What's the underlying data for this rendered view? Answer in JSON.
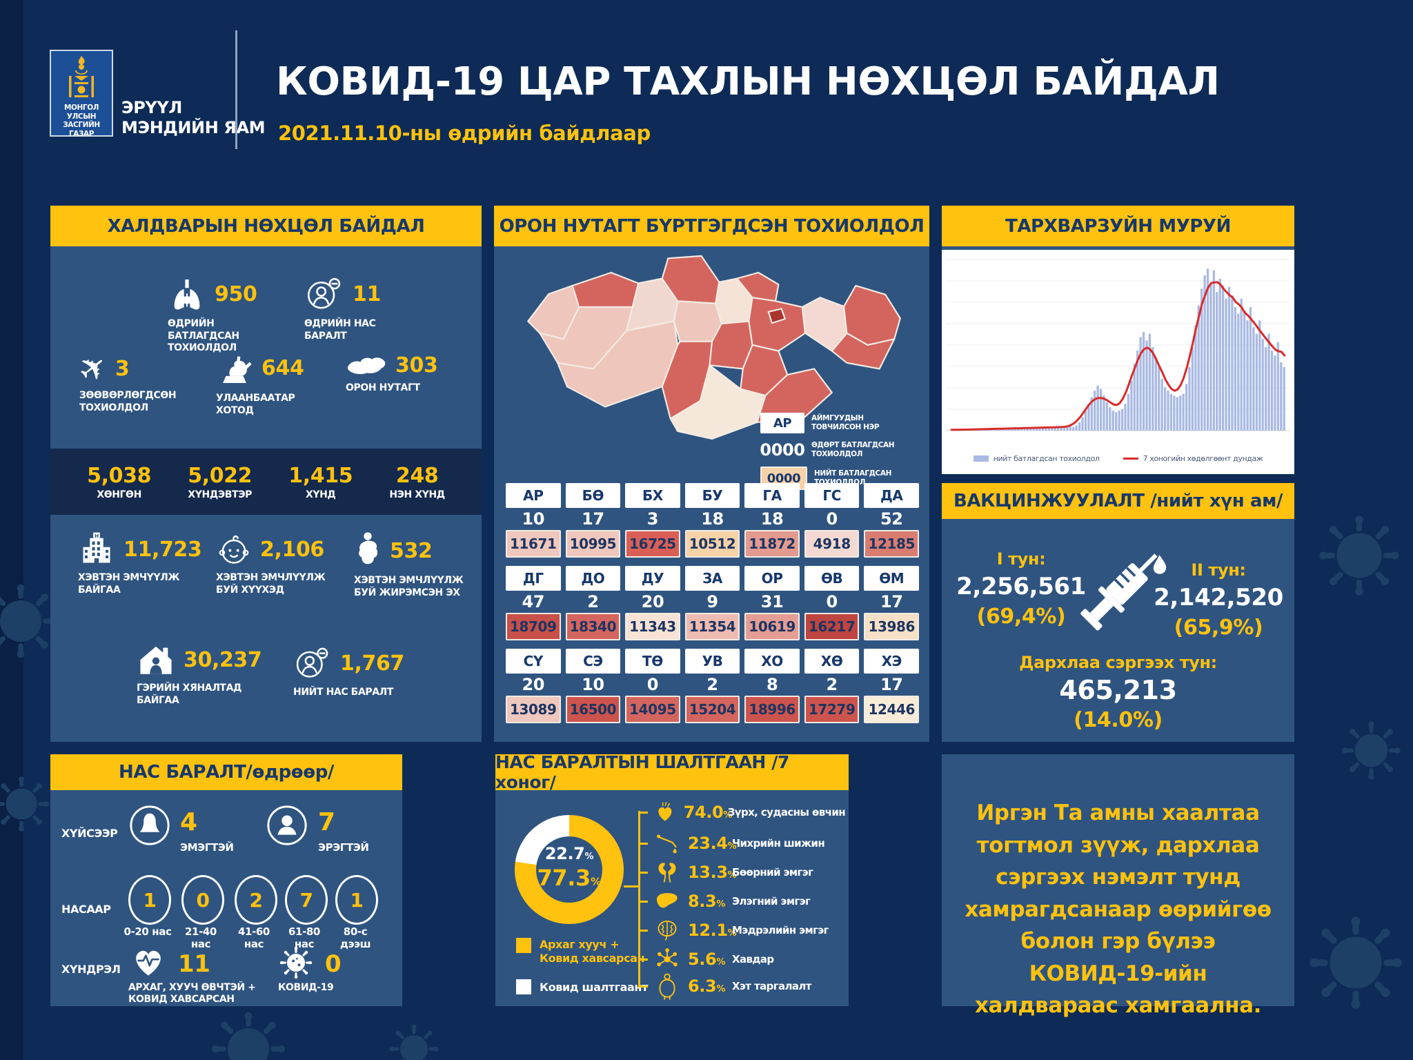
{
  "percent_sign": "%",
  "colors": {
    "background": "#0d2b56",
    "panel": "#2f5480",
    "accent_yellow": "#ffc20e",
    "header_text": "#17386b",
    "dark_strip": "#15294d",
    "area_fill": "#a9b9e2",
    "avg_line": "#d92b2b",
    "ub_dark_red": "#a93531"
  },
  "header": {
    "gov_line1": "МОНГОЛ УЛСЫН",
    "gov_line2": "ЗАСГИЙН ГАЗАР",
    "ministry_line1": "ЭРҮҮЛ",
    "ministry_line2": "МЭНДИЙН ЯАМ",
    "title": "КОВИД-19 ЦАР ТАХЛЫН НӨХЦӨЛ БАЙДАЛ",
    "subtitle": "2021.11.10-ны өдрийн байдлаар"
  },
  "infection": {
    "title": "ХАЛДВАРЫН НӨХЦӨЛ БАЙДАЛ",
    "row1": [
      {
        "value": "950",
        "label": "ӨДРИЙН БАТЛАГДСАН ТОХИОЛДОЛ"
      },
      {
        "value": "11",
        "label": "ӨДРИЙН НАС БАРАЛТ"
      }
    ],
    "row2": [
      {
        "value": "3",
        "label": "ЗӨӨВӨРЛӨГДСӨН ТОХИОЛДОЛ"
      },
      {
        "value": "644",
        "label": "УЛААНБААТАР ХОТОД"
      },
      {
        "value": "303",
        "label": "ОРОН НУТАГТ"
      }
    ],
    "severity": [
      {
        "value": "5,038",
        "label": "ХӨНГӨН"
      },
      {
        "value": "5,022",
        "label": "ХҮНДЭВТЭР"
      },
      {
        "value": "1,415",
        "label": "ХҮНД"
      },
      {
        "value": "248",
        "label": "НЭН ХҮНД"
      }
    ],
    "row3": [
      {
        "value": "11,723",
        "label": "ХЭВТЭН ЭМЧҮҮЛЖ БАЙГАА"
      },
      {
        "value": "2,106",
        "label": "ХЭВТЭН ЭМЧЛҮҮЛЖ БУЙ ХҮҮХЭД"
      },
      {
        "value": "532",
        "label": "ХЭВТЭН ЭМЧЛҮҮЛЖ БУЙ ЖИРЭМСЭН ЭХ"
      }
    ],
    "row4": [
      {
        "value": "30,237",
        "label": "ГЭРИЙН ХЯНАЛТАД БАЙГАА"
      },
      {
        "value": "1,767",
        "label": "НИЙТ НАС БАРАЛТ"
      }
    ]
  },
  "regional": {
    "title": "ОРОН НУТАГТ БҮРТГЭГДСЭН ТОХИОЛДОЛ",
    "legend": {
      "abbr_sample": "АР",
      "abbr_label": "АЙМГУУДЫН ТОВЧИЛСОН НЭР",
      "daily_sample": "0000",
      "daily_label": "ӨДӨРТ БАТЛАГДСАН ТОХИОЛДОЛ",
      "total_sample": "0000",
      "total_label": "НИЙТ БАТЛАГДСАН ТОХИОЛДОЛ",
      "total_sample_bg": "#f6d2a8"
    },
    "rows": [
      [
        {
          "abbr": "АР",
          "daily": "10",
          "total": "11671",
          "color": "#efc7bd"
        },
        {
          "abbr": "БӨ",
          "daily": "17",
          "total": "10995",
          "color": "#efc7bd"
        },
        {
          "abbr": "БХ",
          "daily": "3",
          "total": "16725",
          "color": "#d95f57"
        },
        {
          "abbr": "БУ",
          "daily": "18",
          "total": "10512",
          "color": "#f6d2a8"
        },
        {
          "abbr": "ГА",
          "daily": "18",
          "total": "11872",
          "color": "#e39a8f"
        },
        {
          "abbr": "ГС",
          "daily": "0",
          "total": "4918",
          "color": "#f3d9d2"
        },
        {
          "abbr": "ДА",
          "daily": "52",
          "total": "12185",
          "color": "#d97c72"
        }
      ],
      [
        {
          "abbr": "ДГ",
          "daily": "47",
          "total": "18709",
          "color": "#c75049"
        },
        {
          "abbr": "ДО",
          "daily": "2",
          "total": "18340",
          "color": "#d4655e"
        },
        {
          "abbr": "ДУ",
          "daily": "20",
          "total": "11343",
          "color": "#f6e3d6"
        },
        {
          "abbr": "ЗА",
          "daily": "9",
          "total": "11354",
          "color": "#eebbb1"
        },
        {
          "abbr": "ОР",
          "daily": "31",
          "total": "10619",
          "color": "#e49d93"
        },
        {
          "abbr": "ӨВ",
          "daily": "0",
          "total": "16217",
          "color": "#bf4540"
        },
        {
          "abbr": "ӨМ",
          "daily": "17",
          "total": "13986",
          "color": "#f6e0c6"
        }
      ],
      [
        {
          "abbr": "СҮ",
          "daily": "20",
          "total": "13089",
          "color": "#efc7bd"
        },
        {
          "abbr": "СЭ",
          "daily": "10",
          "total": "16500",
          "color": "#cd544d"
        },
        {
          "abbr": "ТӨ",
          "daily": "0",
          "total": "14095",
          "color": "#d4655e"
        },
        {
          "abbr": "УВ",
          "daily": "2",
          "total": "15204",
          "color": "#d4655e"
        },
        {
          "abbr": "ХО",
          "daily": "8",
          "total": "18996",
          "color": "#cd544d"
        },
        {
          "abbr": "ХӨ",
          "daily": "2",
          "total": "17279",
          "color": "#cd544d"
        },
        {
          "abbr": "ХЭ",
          "daily": "17",
          "total": "12446",
          "color": "#f8ecd8"
        }
      ]
    ]
  },
  "vaccination": {
    "title": "ВАКЦИНЖУУЛАЛТ /нийт хүн ам/",
    "dose1_label": "I тун:",
    "dose1_value": "2,256,561",
    "dose1_pct": "(69,4%)",
    "dose2_label": "II тун:",
    "dose2_value": "2,142,520",
    "dose2_pct": "(65,9%)",
    "booster_label": "Дархлаа сэргээх тун:",
    "booster_value": "465,213",
    "booster_pct": "(14.0%)"
  },
  "deaths": {
    "title": "НАС БАРАЛТ/өдрөөр/",
    "gender_label": "ХҮЙСЭЭР",
    "female_value": "4",
    "female_label": "ЭМЭГТЭЙ",
    "male_value": "7",
    "male_label": "ЭРЭГТЭЙ",
    "age_label": "НАСААР",
    "ages": [
      {
        "value": "1",
        "label": "0-20 нас"
      },
      {
        "value": "0",
        "label": "21-40 нас"
      },
      {
        "value": "2",
        "label": "41-60 нас"
      },
      {
        "value": "7",
        "label": "61-80 нас"
      },
      {
        "value": "1",
        "label": "80-с дээш"
      }
    ],
    "comorbidity_label": "ХҮНДРЭЛ",
    "com1_value": "11",
    "com1_label": "АРХАГ, ХУУЧ ӨВЧТЭЙ + КОВИД ХАВСАРСАН",
    "com2_value": "0",
    "com2_label": "КОВИД-19"
  },
  "causes": {
    "title": "НАС БАРАЛТЫН ШАЛТГААН /7 хоног/",
    "donut": {
      "covid_only": "22.7",
      "comorbid": "77.3"
    },
    "legend1": "Архаг хууч + Ковид хавсарсан",
    "legend2": "Ковид шалтгаант",
    "items": [
      {
        "pct": "74.0",
        "label": "Зүрх, судасны өвчин"
      },
      {
        "pct": "23.4",
        "label": "Чихрийн шижин"
      },
      {
        "pct": "13.3",
        "label": "Бөөрний эмгэг"
      },
      {
        "pct": "8.3",
        "label": "Элэгний эмгэг"
      },
      {
        "pct": "12.1",
        "label": "Мэдрэлийн эмгэг"
      },
      {
        "pct": "5.6",
        "label": "Хавдар"
      },
      {
        "pct": "6.3",
        "label": "Хэт таргалалт"
      }
    ]
  },
  "message": {
    "text": "Иргэн Та амны хаалтаа тогтмол зүүж, дархлаа сэргээх нэмэлт тунд хамрагдсанаар өөрийгөө болон гэр бүлээ КОВИД-19-ийн халдвараас хамгаална."
  },
  "chart_data": [
    {
      "type": "area",
      "title": "ТАРХВАРЗУЙН МУРУЙ",
      "xlabel": "",
      "ylabel": "",
      "grid": true,
      "legend_position": "bottom",
      "legend": [
        "нийт батлагдсан тохиолдол",
        "7 хоногийн хөдөлгөөнт дундаж"
      ],
      "note": "daily confirmed cases since start of epidemic; values relative (% of peak), no axis tick labels visible",
      "ylim": [
        0,
        100
      ],
      "series": [
        {
          "name": "нийт батлагдсан тохиолдол",
          "type": "bar",
          "color": "#a9b9e2",
          "values": [
            0.4,
            0.5,
            0.4,
            0.6,
            0.5,
            0.7,
            0.6,
            0.8,
            0.7,
            0.9,
            0.8,
            1,
            0.9,
            1.1,
            1,
            1.2,
            1,
            1.3,
            1.1,
            1.4,
            1.2,
            1.5,
            1.3,
            1.6,
            1.4,
            1.7,
            1.5,
            1.8,
            1.6,
            1.9,
            1.7,
            2,
            1.8,
            2.1,
            1.9,
            2.2,
            2,
            2.3,
            2.1,
            2.5,
            2.3,
            3,
            5,
            8,
            12,
            16,
            20,
            24,
            27,
            25,
            21,
            17,
            14,
            12,
            11,
            12,
            13,
            16,
            22,
            30,
            40,
            48,
            56,
            59,
            54,
            58,
            50,
            44,
            38,
            31,
            26,
            24,
            22,
            21,
            20,
            21,
            22,
            28,
            38,
            50,
            63,
            75,
            85,
            93,
            97,
            88,
            96,
            83,
            91,
            87,
            79,
            86,
            81,
            74,
            70,
            79,
            72,
            66,
            74,
            62,
            58,
            66,
            55,
            50,
            58,
            48,
            45,
            53,
            41,
            38
          ]
        },
        {
          "name": "7 хоногийн хөдөлгөөнт дундаж",
          "type": "line",
          "color": "#d92b2b",
          "derived": "moving average of bar series"
        }
      ]
    },
    {
      "type": "pie",
      "title": "НАС БАРАЛТЫН ШАЛТГААН /7 хоног/",
      "labels": [
        "Архаг хууч + Ковид хавсарсан",
        "Ковид шалтгаант"
      ],
      "values": [
        77.3,
        22.7
      ],
      "colors": [
        "#ffc20e",
        "#ffffff"
      ]
    }
  ]
}
